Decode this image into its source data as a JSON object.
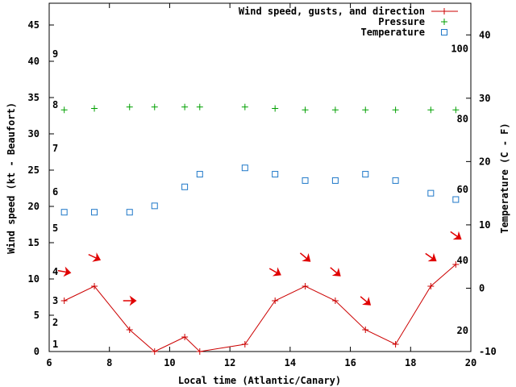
{
  "chart_data": {
    "type": "line",
    "xlabel": "Local time (Atlantic/Canary)",
    "ylabel_left": "Wind speed (kt - Beaufort)",
    "ylabel_right": "Temperature (C - F)",
    "xlim": [
      6,
      20
    ],
    "ylim_left": [
      0,
      48
    ],
    "ylim_right_celsius": [
      -10,
      45
    ],
    "x_ticks": [
      6,
      8,
      10,
      12,
      14,
      16,
      18,
      20
    ],
    "y_ticks_left": [
      0,
      5,
      10,
      15,
      20,
      25,
      30,
      35,
      40,
      45
    ],
    "y_ticks_right_celsius": [
      -10,
      0,
      10,
      20,
      30,
      40
    ],
    "beaufort_labels": [
      {
        "label": "1",
        "kt": 1
      },
      {
        "label": "2",
        "kt": 4
      },
      {
        "label": "3",
        "kt": 7
      },
      {
        "label": "4",
        "kt": 11
      },
      {
        "label": "5",
        "kt": 17
      },
      {
        "label": "6",
        "kt": 22
      },
      {
        "label": "7",
        "kt": 28
      },
      {
        "label": "8",
        "kt": 34
      },
      {
        "label": "9",
        "kt": 41
      }
    ],
    "fahrenheit_labels": [
      {
        "label": "20",
        "celsius": -6.7
      },
      {
        "label": "40",
        "celsius": 4.4
      },
      {
        "label": "60",
        "celsius": 15.6
      },
      {
        "label": "80",
        "celsius": 26.7
      },
      {
        "label": "100",
        "celsius": 37.8
      }
    ],
    "legend_position": "top-right",
    "series": [
      {
        "name": "Wind speed, gusts, and direction",
        "color": "#cc0000",
        "marker": "plus",
        "x": [
          6.5,
          7.5,
          8.67,
          9.5,
          10.5,
          11.0,
          12.5,
          13.5,
          14.5,
          15.5,
          16.5,
          17.5,
          18.67,
          19.5
        ],
        "y": [
          7,
          9,
          3,
          0,
          2,
          0,
          1,
          7,
          9,
          7,
          3,
          1,
          9,
          12
        ]
      },
      {
        "name": "Pressure",
        "color": "#00a000",
        "marker": "plus",
        "x": [
          6.5,
          7.5,
          8.67,
          9.5,
          10.5,
          11.0,
          12.5,
          13.5,
          14.5,
          15.5,
          16.5,
          17.5,
          18.67,
          19.5
        ],
        "y": [
          33.3,
          33.5,
          33.7,
          33.7,
          33.7,
          33.7,
          33.7,
          33.5,
          33.3,
          33.3,
          33.3,
          33.3,
          33.3,
          33.3
        ]
      },
      {
        "name": "Temperature",
        "color": "#1f78c8",
        "marker": "square",
        "axis": "right",
        "x": [
          6.5,
          7.5,
          8.67,
          9.5,
          10.5,
          11.0,
          12.5,
          13.5,
          14.5,
          15.5,
          16.5,
          17.5,
          18.67,
          19.5
        ],
        "y": [
          12,
          12,
          12,
          13,
          16,
          18,
          19,
          18,
          17,
          17,
          18,
          17,
          15,
          14
        ]
      }
    ],
    "wind_direction_arrows": [
      {
        "x": 6.5,
        "kt": 11,
        "angle_deg": 10
      },
      {
        "x": 7.5,
        "kt": 13,
        "angle_deg": 25
      },
      {
        "x": 8.67,
        "kt": 7,
        "angle_deg": 0
      },
      {
        "x": 13.5,
        "kt": 11,
        "angle_deg": 30
      },
      {
        "x": 14.5,
        "kt": 13,
        "angle_deg": 40
      },
      {
        "x": 15.5,
        "kt": 11,
        "angle_deg": 40
      },
      {
        "x": 16.5,
        "kt": 7,
        "angle_deg": 40
      },
      {
        "x": 18.67,
        "kt": 13,
        "angle_deg": 35
      },
      {
        "x": 19.5,
        "kt": 16,
        "angle_deg": 35
      }
    ]
  }
}
